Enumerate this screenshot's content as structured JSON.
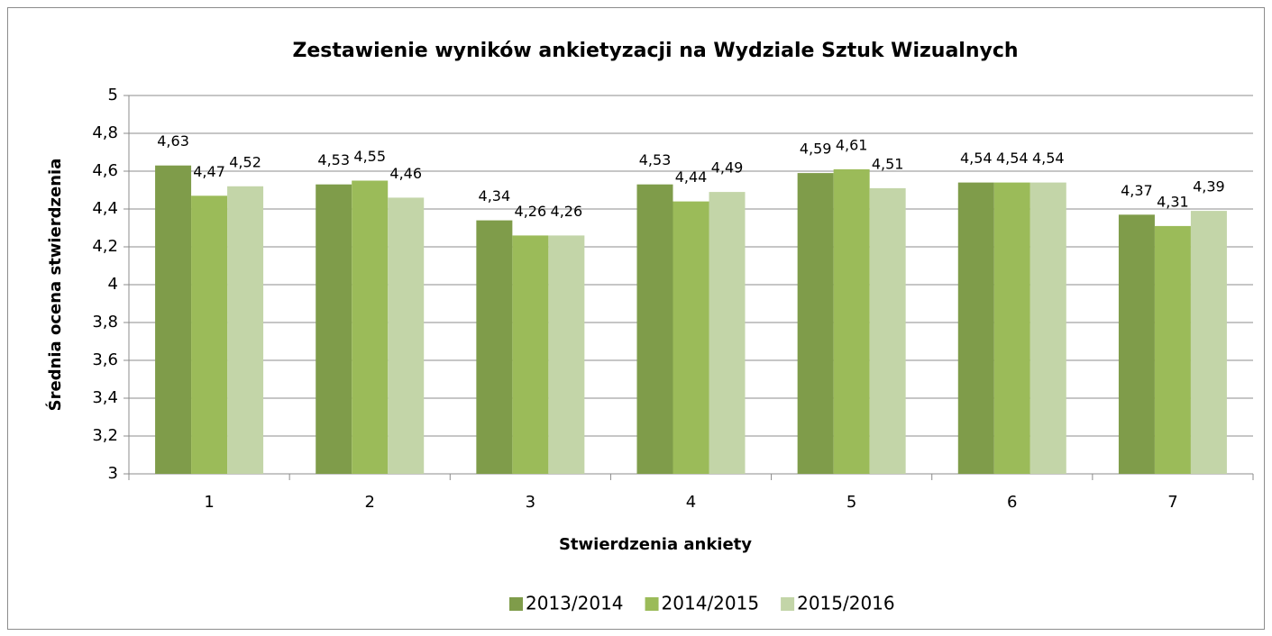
{
  "chart_data": {
    "type": "bar",
    "title": "Zestawienie wyników ankietyzacji na Wydziale Sztuk Wizualnych",
    "x_label": "Stwierdzenia ankiety",
    "y_label": "Średnia ocena stwierdzenia",
    "categories": [
      "1",
      "2",
      "3",
      "4",
      "5",
      "6",
      "7"
    ],
    "series": [
      {
        "name": "2013/2014",
        "color": "#7f9c4a",
        "values": [
          4.63,
          4.53,
          4.34,
          4.53,
          4.59,
          4.54,
          4.37
        ],
        "value_labels": [
          "4,63",
          "4,53",
          "4,34",
          "4,53",
          "4,59",
          "4,54",
          "4,37"
        ]
      },
      {
        "name": "2014/2015",
        "color": "#9bbb59",
        "values": [
          4.47,
          4.55,
          4.26,
          4.44,
          4.61,
          4.54,
          4.31
        ],
        "value_labels": [
          "4,47",
          "4,55",
          "4,26",
          "4,44",
          "4,61",
          "4,54",
          "4,31"
        ]
      },
      {
        "name": "2015/2016",
        "color": "#c3d5a8",
        "values": [
          4.52,
          4.46,
          4.26,
          4.49,
          4.51,
          4.54,
          4.39
        ],
        "value_labels": [
          "4,52",
          "4,46",
          "4,26",
          "4,49",
          "4,51",
          "4,54",
          "4,39"
        ]
      }
    ],
    "ylim": [
      3,
      5
    ],
    "yticks": [
      3,
      {
        "value": 3.2,
        "label": "3,2"
      },
      {
        "value": 3.4,
        "label": "3,4"
      },
      {
        "value": 3.6,
        "label": "3,6"
      },
      {
        "value": 3.8,
        "label": "3,8"
      },
      4,
      {
        "value": 4.2,
        "label": "4,2"
      },
      {
        "value": 4.4,
        "label": "4,4"
      },
      {
        "value": 4.6,
        "label": "4,6"
      },
      {
        "value": 4.8,
        "label": "4,8"
      },
      5
    ],
    "grid": true,
    "legend": "bottom"
  }
}
